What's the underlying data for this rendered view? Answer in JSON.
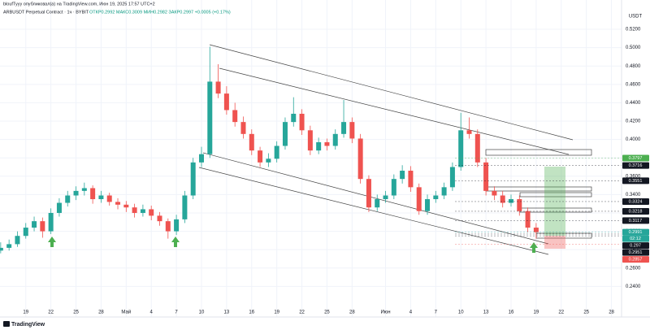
{
  "chart_data": {
    "type": "candlestick",
    "title": "bloufTyyy опубликовал(а) на TradingView.com, Июн 19, 2025 17:57 UTC+2",
    "subtitle": "ARBUSDT Perpetual Contract · 1ч · BYBIT",
    "ohlc_text": "ОТКР0.2992 МАКС0.3009 МИН0.2982 ЗАКР0.2997 +0.0005 (+0.17%)",
    "currency": "USDT",
    "brand": "TradingView",
    "up_color": "#26a69a",
    "down_color": "#ef5350",
    "x": [
      "2025-04-16",
      "2025-04-17",
      "2025-04-18",
      "2025-04-19",
      "2025-04-20",
      "2025-04-21",
      "2025-04-22",
      "2025-04-23",
      "2025-04-24",
      "2025-04-25",
      "2025-04-26",
      "2025-04-27",
      "2025-04-28",
      "2025-04-29",
      "2025-04-30",
      "2025-05-01",
      "2025-05-02",
      "2025-05-03",
      "2025-05-04",
      "2025-05-05",
      "2025-05-06",
      "2025-05-07",
      "2025-05-08",
      "2025-05-09",
      "2025-05-10",
      "2025-05-11",
      "2025-05-12",
      "2025-05-13",
      "2025-05-14",
      "2025-05-15",
      "2025-05-16",
      "2025-05-17",
      "2025-05-18",
      "2025-05-19",
      "2025-05-20",
      "2025-05-21",
      "2025-05-22",
      "2025-05-23",
      "2025-05-24",
      "2025-05-25",
      "2025-05-26",
      "2025-05-27",
      "2025-05-28",
      "2025-05-29",
      "2025-05-30",
      "2025-05-31",
      "2025-06-01",
      "2025-06-02",
      "2025-06-03",
      "2025-06-04",
      "2025-06-05",
      "2025-06-06",
      "2025-06-07",
      "2025-06-08",
      "2025-06-09",
      "2025-06-10",
      "2025-06-11",
      "2025-06-12",
      "2025-06-13",
      "2025-06-14",
      "2025-06-15",
      "2025-06-16",
      "2025-06-17",
      "2025-06-18",
      "2025-06-19"
    ],
    "open": [
      0.279,
      0.282,
      0.286,
      0.295,
      0.304,
      0.311,
      0.3,
      0.32,
      0.331,
      0.339,
      0.344,
      0.347,
      0.335,
      0.339,
      0.332,
      0.329,
      0.326,
      0.32,
      0.324,
      0.317,
      0.311,
      0.3,
      0.313,
      0.339,
      0.375,
      0.384,
      0.463,
      0.45,
      0.432,
      0.419,
      0.406,
      0.388,
      0.375,
      0.379,
      0.393,
      0.419,
      0.428,
      0.41,
      0.388,
      0.397,
      0.393,
      0.406,
      0.419,
      0.401,
      0.357,
      0.326,
      0.335,
      0.339,
      0.357,
      0.366,
      0.348,
      0.322,
      0.335,
      0.339,
      0.348,
      0.37,
      0.41,
      0.406,
      0.375,
      0.344,
      0.339,
      0.331,
      0.335,
      0.322,
      0.304
    ],
    "high": [
      0.288,
      0.291,
      0.3,
      0.309,
      0.316,
      0.315,
      0.325,
      0.336,
      0.344,
      0.349,
      0.353,
      0.35,
      0.344,
      0.342,
      0.336,
      0.333,
      0.33,
      0.329,
      0.328,
      0.321,
      0.314,
      0.318,
      0.344,
      0.38,
      0.392,
      0.501,
      0.482,
      0.458,
      0.44,
      0.425,
      0.411,
      0.392,
      0.385,
      0.398,
      0.424,
      0.446,
      0.433,
      0.415,
      0.402,
      0.401,
      0.411,
      0.443,
      0.424,
      0.406,
      0.361,
      0.34,
      0.344,
      0.362,
      0.372,
      0.371,
      0.352,
      0.34,
      0.344,
      0.353,
      0.375,
      0.429,
      0.424,
      0.411,
      0.38,
      0.349,
      0.344,
      0.34,
      0.339,
      0.326,
      0.309
    ],
    "low": [
      0.276,
      0.279,
      0.283,
      0.292,
      0.3,
      0.293,
      0.297,
      0.316,
      0.327,
      0.334,
      0.339,
      0.33,
      0.331,
      0.328,
      0.324,
      0.321,
      0.315,
      0.316,
      0.312,
      0.306,
      0.292,
      0.296,
      0.309,
      0.335,
      0.37,
      0.38,
      0.445,
      0.427,
      0.414,
      0.401,
      0.383,
      0.37,
      0.37,
      0.375,
      0.389,
      0.414,
      0.405,
      0.383,
      0.384,
      0.388,
      0.389,
      0.402,
      0.396,
      0.352,
      0.321,
      0.322,
      0.331,
      0.335,
      0.352,
      0.343,
      0.318,
      0.318,
      0.331,
      0.335,
      0.344,
      0.366,
      0.401,
      0.37,
      0.339,
      0.334,
      0.326,
      0.327,
      0.317,
      0.299,
      0.292
    ],
    "close": [
      0.282,
      0.286,
      0.295,
      0.304,
      0.311,
      0.3,
      0.32,
      0.331,
      0.339,
      0.344,
      0.347,
      0.335,
      0.339,
      0.332,
      0.329,
      0.326,
      0.32,
      0.324,
      0.317,
      0.311,
      0.3,
      0.313,
      0.339,
      0.375,
      0.384,
      0.463,
      0.45,
      0.432,
      0.419,
      0.406,
      0.388,
      0.375,
      0.379,
      0.393,
      0.419,
      0.428,
      0.41,
      0.388,
      0.397,
      0.393,
      0.406,
      0.419,
      0.401,
      0.357,
      0.326,
      0.335,
      0.339,
      0.357,
      0.366,
      0.348,
      0.322,
      0.335,
      0.339,
      0.348,
      0.37,
      0.41,
      0.406,
      0.375,
      0.344,
      0.339,
      0.331,
      0.335,
      0.322,
      0.304,
      0.299
    ],
    "xlim": [
      "2025-04-15T22:00",
      "2025-06-29T05:00"
    ],
    "xticks": [
      {
        "value": "2025-04-19",
        "label": "19"
      },
      {
        "value": "2025-04-22",
        "label": "22"
      },
      {
        "value": "2025-04-25",
        "label": "25"
      },
      {
        "value": "2025-04-28",
        "label": "28"
      },
      {
        "value": "2025-05-01",
        "label": "Май"
      },
      {
        "value": "2025-05-04",
        "label": "4"
      },
      {
        "value": "2025-05-07",
        "label": "7"
      },
      {
        "value": "2025-05-10",
        "label": "10"
      },
      {
        "value": "2025-05-13",
        "label": "13"
      },
      {
        "value": "2025-05-16",
        "label": "16"
      },
      {
        "value": "2025-05-19",
        "label": "19"
      },
      {
        "value": "2025-05-22",
        "label": "22"
      },
      {
        "value": "2025-05-25",
        "label": "25"
      },
      {
        "value": "2025-05-28",
        "label": "28"
      },
      {
        "value": "2025-06-01",
        "label": "Июн"
      },
      {
        "value": "2025-06-04",
        "label": "4"
      },
      {
        "value": "2025-06-07",
        "label": "7"
      },
      {
        "value": "2025-06-10",
        "label": "10"
      },
      {
        "value": "2025-06-13",
        "label": "13"
      },
      {
        "value": "2025-06-16",
        "label": "16"
      },
      {
        "value": "2025-06-19",
        "label": "19"
      },
      {
        "value": "2025-06-22",
        "label": "22"
      },
      {
        "value": "2025-06-25",
        "label": "25"
      },
      {
        "value": "2025-06-28",
        "label": "28"
      }
    ],
    "ylim": [
      0.2173,
      0.5395
    ],
    "yticks": [
      {
        "value": 0.24,
        "label": "0.2400"
      },
      {
        "value": 0.26,
        "label": "0.2600"
      },
      {
        "value": 0.28,
        "label": "0.2800"
      },
      {
        "value": 0.3,
        "label": "0.3000"
      },
      {
        "value": 0.32,
        "label": "0.3200"
      },
      {
        "value": 0.34,
        "label": "0.3400"
      },
      {
        "value": 0.36,
        "label": "0.3600"
      },
      {
        "value": 0.38,
        "label": "0.3800"
      },
      {
        "value": 0.4,
        "label": "0.4000"
      },
      {
        "value": 0.42,
        "label": "0.4200"
      },
      {
        "value": 0.44,
        "label": "0.4400"
      },
      {
        "value": 0.46,
        "label": "0.4600"
      },
      {
        "value": 0.48,
        "label": "0.4800"
      },
      {
        "value": 0.5,
        "label": "0.5000"
      },
      {
        "value": 0.52,
        "label": "0.5200"
      }
    ],
    "grid": true,
    "price_labels": [
      {
        "value": 0.3797,
        "color": "#4caf50"
      },
      {
        "value": 0.3716,
        "color": "#131722"
      },
      {
        "value": 0.3551,
        "color": "#131722"
      },
      {
        "value": 0.3324,
        "color": "#131722"
      },
      {
        "value": 0.3218,
        "color": "#131722"
      },
      {
        "value": 0.3117,
        "color": "#131722"
      },
      {
        "value": 0.2991,
        "color": "#26a69a"
      },
      {
        "value": 0.297,
        "color": "#131722"
      },
      {
        "value": 0.2951,
        "color": "#131722"
      },
      {
        "value": 0.2857,
        "color": "#ef5350"
      }
    ],
    "countdown": "02:12"
  }
}
